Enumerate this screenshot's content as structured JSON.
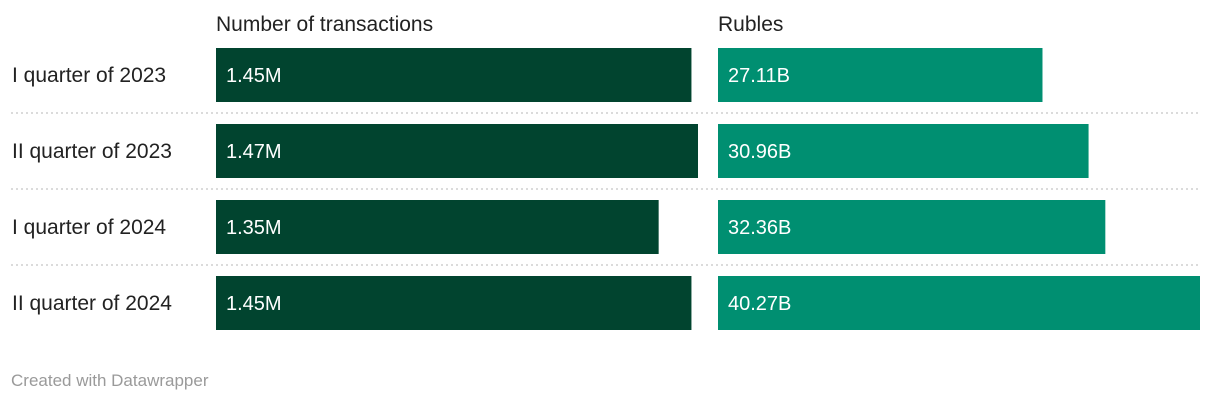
{
  "chart_data": {
    "type": "bar",
    "orientation": "horizontal",
    "categories": [
      "I quarter of 2023",
      "II quarter of 2023",
      "I quarter of 2024",
      "II quarter of 2024"
    ],
    "series": [
      {
        "name": "Number of transactions",
        "values": [
          1.45,
          1.47,
          1.35,
          1.45
        ],
        "labels": [
          "1.45M",
          "1.47M",
          "1.35M",
          "1.45M"
        ],
        "color": "#01442f"
      },
      {
        "name": "Rubles",
        "values": [
          27.11,
          30.96,
          32.36,
          40.27
        ],
        "labels": [
          "27.11B",
          "30.96B",
          "32.36B",
          "40.27B"
        ],
        "color": "#008f71"
      }
    ],
    "grid": false,
    "legend": "none"
  },
  "footer": {
    "credit": "Created with Datawrapper"
  }
}
